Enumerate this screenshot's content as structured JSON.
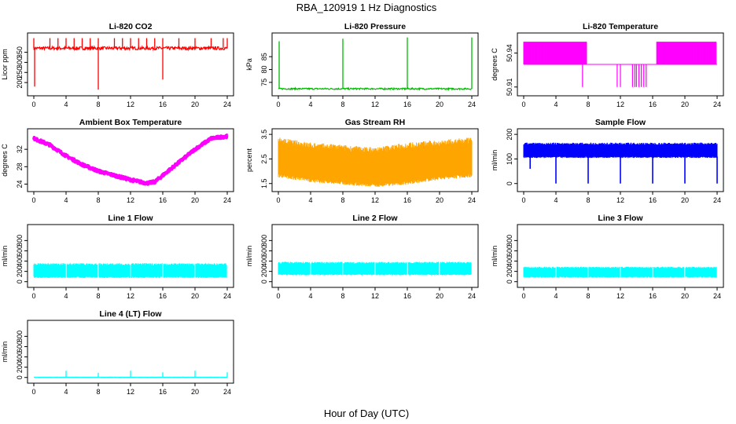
{
  "figure": {
    "title": "RBA_120919  1 Hz Diagnostics",
    "xlabel": "Hour of Day (UTC)"
  },
  "chart_data": [
    {
      "type": "line",
      "title": "Li-820 CO2",
      "ylabel": "Licor ppm",
      "color": "#ff0000",
      "xlim": [
        0,
        24
      ],
      "ylim": [
        150,
        430
      ],
      "xticks": [
        "0",
        "4",
        "8",
        "12",
        "16",
        "20",
        "24"
      ],
      "yticks": [
        200,
        250,
        300,
        350
      ],
      "series": [
        {
          "name": "CO2",
          "base": 370,
          "noise": 8,
          "spikes": [
            {
              "x": 0.0,
              "y": 420
            },
            {
              "x": 0.1,
              "y": 180
            },
            {
              "x": 2.0,
              "y": 420
            },
            {
              "x": 3.0,
              "y": 420
            },
            {
              "x": 4.0,
              "y": 420
            },
            {
              "x": 5.0,
              "y": 420
            },
            {
              "x": 6.0,
              "y": 420
            },
            {
              "x": 7.0,
              "y": 420
            },
            {
              "x": 8.0,
              "y": 420
            },
            {
              "x": 8.0,
              "y": 165
            },
            {
              "x": 10.0,
              "y": 420
            },
            {
              "x": 11.0,
              "y": 420
            },
            {
              "x": 12.0,
              "y": 420
            },
            {
              "x": 13.0,
              "y": 420
            },
            {
              "x": 14.0,
              "y": 420
            },
            {
              "x": 15.0,
              "y": 420
            },
            {
              "x": 16.0,
              "y": 420
            },
            {
              "x": 16.0,
              "y": 215
            },
            {
              "x": 18.0,
              "y": 420
            },
            {
              "x": 20.0,
              "y": 420
            },
            {
              "x": 22.0,
              "y": 420
            },
            {
              "x": 23.5,
              "y": 420
            },
            {
              "x": 24.0,
              "y": 420
            }
          ]
        }
      ]
    },
    {
      "type": "line",
      "title": "Li-820 Pressure",
      "ylabel": "kPa",
      "color": "#00bb00",
      "xlim": [
        0,
        24
      ],
      "ylim": [
        71,
        93
      ],
      "xticks": [
        "0",
        "4",
        "8",
        "12",
        "16",
        "20",
        "24"
      ],
      "yticks": [
        75,
        80,
        85
      ],
      "series": [
        {
          "name": "Pressure",
          "base": 72.5,
          "noise": 0.3,
          "spikes": [
            {
              "x": 0.1,
              "y": 91
            },
            {
              "x": 8.0,
              "y": 92
            },
            {
              "x": 16.0,
              "y": 92.5
            },
            {
              "x": 24.0,
              "y": 92.5
            }
          ]
        }
      ]
    },
    {
      "type": "line",
      "title": "Li-820 Temperature",
      "ylabel": "degrees C",
      "color": "#ff00ff",
      "xlim": [
        0,
        24
      ],
      "ylim": [
        50.905,
        50.955
      ],
      "xticks": [
        "0",
        "4",
        "8",
        "12",
        "16",
        "20",
        "24"
      ],
      "yticks": [
        50.91,
        50.94
      ],
      "series": [
        {
          "name": "Temperature",
          "levels": [
            50.93,
            50.95,
            50.91
          ],
          "high_segments": [
            [
              0,
              7.8
            ],
            [
              16.5,
              23.9
            ]
          ],
          "low_dips": [
            7.3,
            11.6,
            12.0,
            13.5,
            13.8,
            14.0,
            14.3,
            14.6,
            14.9,
            15.2
          ]
        }
      ]
    },
    {
      "type": "line",
      "title": "Ambient Box Temperature",
      "ylabel": "degrees C",
      "color": "#ff00ff",
      "xlim": [
        0,
        24
      ],
      "ylim": [
        23,
        36
      ],
      "xticks": [
        "0",
        "4",
        "8",
        "12",
        "16",
        "20",
        "24"
      ],
      "yticks": [
        24,
        28,
        32
      ],
      "series": [
        {
          "name": "Ambient",
          "x": [
            0,
            2,
            4,
            6,
            8,
            10,
            12,
            14,
            15,
            16,
            18,
            20,
            22,
            24
          ],
          "values": [
            34.5,
            33,
            30.5,
            28.5,
            27,
            26,
            25,
            24.2,
            24.5,
            26,
            29,
            32,
            34.5,
            35
          ]
        }
      ]
    },
    {
      "type": "area",
      "title": "Gas Stream RH",
      "ylabel": "percent",
      "color": "#ffa500",
      "xlim": [
        0,
        24
      ],
      "ylim": [
        1.3,
        3.6
      ],
      "xticks": [
        "0",
        "4",
        "8",
        "12",
        "16",
        "20",
        "24"
      ],
      "yticks": [
        1.5,
        2.5,
        3.5
      ],
      "series": [
        {
          "name": "RH",
          "x": [
            0,
            4,
            8,
            12,
            16,
            20,
            24
          ],
          "upper": [
            3.2,
            3.0,
            2.9,
            2.8,
            3.0,
            3.1,
            3.2
          ],
          "lower": [
            1.9,
            1.7,
            1.6,
            1.5,
            1.6,
            1.8,
            1.9
          ]
        }
      ]
    },
    {
      "type": "area",
      "title": "Sample Flow",
      "ylabel": "ml/min",
      "color": "#0000ff",
      "xlim": [
        0,
        24
      ],
      "ylim": [
        -20,
        210
      ],
      "xticks": [
        "0",
        "4",
        "8",
        "12",
        "16",
        "20",
        "24"
      ],
      "yticks": [
        0,
        100,
        200
      ],
      "series": [
        {
          "name": "Sample Flow",
          "upper": 160,
          "lower": 110,
          "dips": [
            {
              "x": 0.8,
              "y": 60
            },
            {
              "x": 4.0,
              "y": 0
            },
            {
              "x": 8.0,
              "y": 0
            },
            {
              "x": 12.0,
              "y": 0
            },
            {
              "x": 16.0,
              "y": 0
            },
            {
              "x": 20.0,
              "y": 0
            },
            {
              "x": 24.0,
              "y": 0
            }
          ]
        }
      ]
    },
    {
      "type": "area",
      "title": "Line 1 Flow",
      "ylabel": "ml/min",
      "color": "#00ffff",
      "xlim": [
        0,
        24
      ],
      "ylim": [
        -50,
        1050
      ],
      "xticks": [
        "0",
        "4",
        "8",
        "12",
        "16",
        "20",
        "24"
      ],
      "yticks": [
        0,
        200,
        400,
        600,
        800
      ],
      "series": [
        {
          "name": "Line 1",
          "upper": 330,
          "lower": 100,
          "gaps": [
            4,
            8,
            12,
            16,
            20,
            24
          ]
        }
      ]
    },
    {
      "type": "area",
      "title": "Line 2 Flow",
      "ylabel": "ml/min",
      "color": "#00ffff",
      "xlim": [
        0,
        24
      ],
      "ylim": [
        -50,
        1050
      ],
      "xticks": [
        "0",
        "4",
        "8",
        "12",
        "16",
        "20",
        "24"
      ],
      "yticks": [
        0,
        200,
        400,
        600,
        800
      ],
      "series": [
        {
          "name": "Line 2",
          "upper": 360,
          "lower": 150,
          "gaps": [
            4,
            8,
            12,
            16,
            20,
            24
          ]
        }
      ]
    },
    {
      "type": "area",
      "title": "Line 3 Flow",
      "ylabel": "ml/min",
      "color": "#00ffff",
      "xlim": [
        0,
        24
      ],
      "ylim": [
        -50,
        1050
      ],
      "xticks": [
        "0",
        "4",
        "8",
        "12",
        "16",
        "20",
        "24"
      ],
      "yticks": [
        0,
        200,
        400,
        600,
        800
      ],
      "series": [
        {
          "name": "Line 3",
          "upper": 270,
          "lower": 100,
          "gaps": [
            4,
            8,
            12,
            16,
            20,
            24
          ]
        }
      ]
    },
    {
      "type": "line",
      "title": "Line 4 (LT) Flow",
      "ylabel": "ml/min",
      "color": "#00ffff",
      "xlim": [
        0,
        24
      ],
      "ylim": [
        -50,
        1050
      ],
      "xticks": [
        "0",
        "4",
        "8",
        "12",
        "16",
        "20",
        "24"
      ],
      "yticks": [
        0,
        200,
        400,
        600,
        800
      ],
      "series": [
        {
          "name": "Line 4",
          "base": 5,
          "noise": 2,
          "spikes": [
            {
              "x": 4.0,
              "y": 130
            },
            {
              "x": 8.0,
              "y": 90
            },
            {
              "x": 12.0,
              "y": 130
            },
            {
              "x": 16.0,
              "y": 100
            },
            {
              "x": 20.0,
              "y": 130
            },
            {
              "x": 24.0,
              "y": 100
            }
          ]
        }
      ]
    }
  ]
}
